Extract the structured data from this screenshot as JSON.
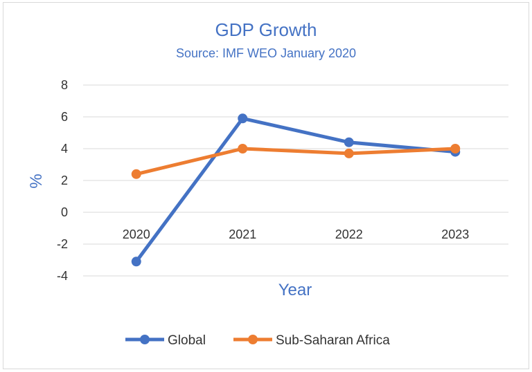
{
  "chart_data": {
    "type": "line",
    "title": "GDP Growth",
    "subtitle": "Source: IMF WEO January 2020",
    "xlabel": "Year",
    "ylabel": "%",
    "categories": [
      "2020",
      "2021",
      "2022",
      "2023"
    ],
    "yticks": [
      "8",
      "6",
      "4",
      "2",
      "0",
      "-2",
      "-4"
    ],
    "ylim": [
      -4,
      8
    ],
    "grid": true,
    "legend_position": "bottom",
    "series": [
      {
        "name": "Global",
        "color": "#4472C4",
        "values": [
          -3.1,
          5.9,
          4.4,
          3.8
        ]
      },
      {
        "name": "Sub-Saharan Africa",
        "color": "#ED7D31",
        "values": [
          2.4,
          4.0,
          3.7,
          4.0
        ]
      }
    ]
  }
}
